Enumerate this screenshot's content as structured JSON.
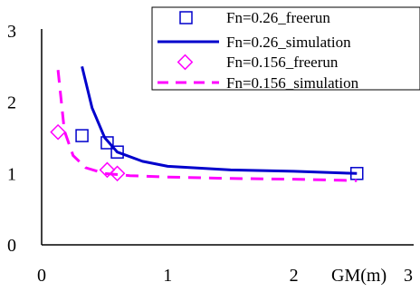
{
  "chart_data": {
    "type": "line",
    "title": "",
    "xlabel": "GM(m)",
    "ylabel": "",
    "xlim": [
      0,
      3
    ],
    "ylim": [
      0,
      3
    ],
    "x_ticks": [
      "0",
      "1",
      "2",
      "3"
    ],
    "y_ticks": [
      "0",
      "1",
      "2",
      "3"
    ],
    "grid": false,
    "legend_position": "top-right",
    "series": [
      {
        "name": "Fn=0.26_freerun",
        "kind": "scatter",
        "marker": "square",
        "color": "#0000cc",
        "x": [
          0.32,
          0.52,
          0.6,
          2.5
        ],
        "y": [
          1.53,
          1.43,
          1.3,
          1.0
        ]
      },
      {
        "name": "Fn=0.26_simulation",
        "kind": "line",
        "line_style": "solid",
        "color": "#0000cc",
        "x": [
          0.32,
          0.4,
          0.5,
          0.6,
          0.8,
          1.0,
          1.5,
          2.0,
          2.5
        ],
        "y": [
          2.5,
          1.92,
          1.5,
          1.3,
          1.17,
          1.1,
          1.05,
          1.03,
          1.0
        ]
      },
      {
        "name": "Fn=0.156_freerun",
        "kind": "scatter",
        "marker": "diamond",
        "color": "#ff00ff",
        "x": [
          0.13,
          0.52,
          0.6
        ],
        "y": [
          1.58,
          1.05,
          1.0
        ]
      },
      {
        "name": "Fn=0.156_simulation",
        "kind": "line",
        "line_style": "dashed",
        "color": "#ff00ff",
        "x": [
          0.13,
          0.18,
          0.25,
          0.35,
          0.5,
          0.7,
          1.0,
          1.5,
          2.0,
          2.5
        ],
        "y": [
          2.45,
          1.6,
          1.25,
          1.08,
          1.0,
          0.97,
          0.95,
          0.93,
          0.92,
          0.9
        ]
      }
    ]
  }
}
